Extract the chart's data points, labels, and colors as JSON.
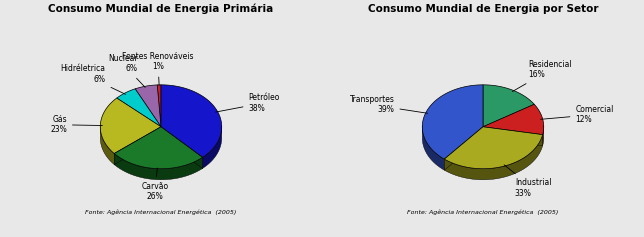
{
  "chart1": {
    "title": "Consumo Mundial de Energia Primária",
    "legend_labels": [
      "Petróleo",
      "Carvão",
      "Gás",
      "Hidréletrica",
      "Nuclear",
      "Fontes Renováveis"
    ],
    "pct_labels": [
      "38%",
      "26%",
      "23%",
      "6%",
      "6%",
      "1%"
    ],
    "values": [
      38,
      26,
      23,
      6,
      6,
      1
    ],
    "colors": [
      "#1515CC",
      "#1A7A2A",
      "#B8B820",
      "#00CCCC",
      "#9966AA",
      "#CC2020"
    ],
    "dark_colors": [
      "#0A0A66",
      "#0A3A10",
      "#5C5C10",
      "#006666",
      "#4A2255",
      "#661010"
    ],
    "source": "Fonte: Agência Internacional Energética  (2005)"
  },
  "chart2": {
    "title": "Consumo Mundial de Energia por Setor",
    "legend_labels": [
      "Residencial",
      "Comercial",
      "Industrial",
      "Transportes"
    ],
    "pct_labels": [
      "16%",
      "12%",
      "33%",
      "39%"
    ],
    "values": [
      16,
      12,
      33,
      39
    ],
    "colors": [
      "#2A9966",
      "#CC2020",
      "#AAAA20",
      "#3355CC"
    ],
    "dark_colors": [
      "#0A4A30",
      "#661010",
      "#555510",
      "#1A2A66"
    ],
    "source": "Fonte: Agência Internacional Energética  (2005)"
  },
  "bg": "#ffffff",
  "outer_bg": "#e8e8e8"
}
